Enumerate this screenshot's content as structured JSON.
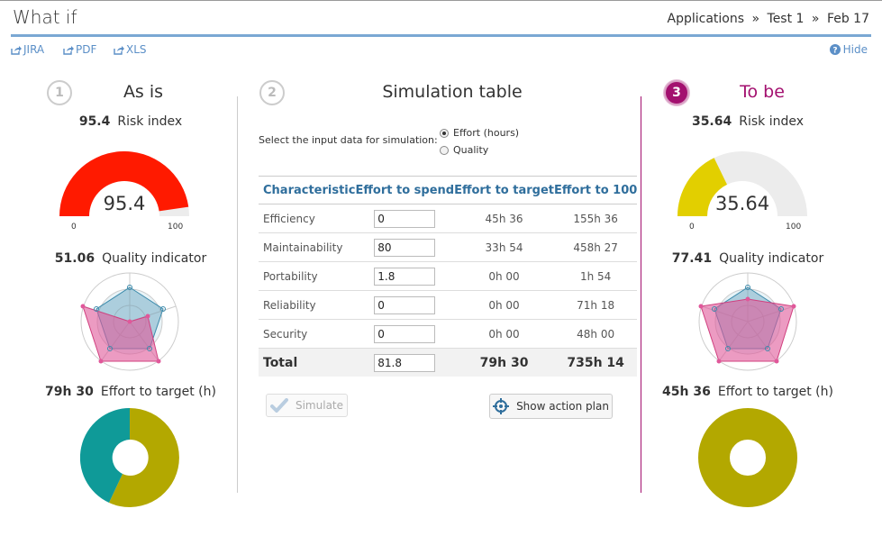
{
  "header": {
    "title": "What if",
    "breadcrumb": [
      "Applications",
      "Test 1",
      "Feb 17"
    ],
    "separator": "»"
  },
  "exports": [
    {
      "label": "JIRA",
      "icon": "share-icon"
    },
    {
      "label": "PDF",
      "icon": "share-icon"
    },
    {
      "label": "XLS",
      "icon": "share-icon"
    }
  ],
  "hide_label": "Hide",
  "as_is": {
    "step": "1",
    "title": "As is",
    "risk_value": "95.4",
    "risk_label": "Risk index",
    "gauge_value": "95.4",
    "gauge_fraction": 0.954,
    "gauge_min": "0",
    "gauge_max": "100",
    "gauge_color": "#ff1a00",
    "quality_value": "51.06",
    "quality_label": "Quality indicator",
    "effort_value": "79h 30",
    "effort_label": "Effort to target (h)"
  },
  "simulation": {
    "step": "2",
    "title": "Simulation table",
    "input_label": "Select the input data for simulation:",
    "radio_options": [
      {
        "label": "Effort (hours)",
        "selected": true
      },
      {
        "label": "Quality",
        "selected": false
      }
    ],
    "columns": [
      "Characteristic",
      "Effort to spend",
      "Effort to target",
      "Effort to 100"
    ],
    "rows": [
      {
        "name": "Efficiency",
        "spend": "0",
        "target": "45h 36",
        "to100": "155h 36"
      },
      {
        "name": "Maintainability",
        "spend": "80",
        "target": "33h 54",
        "to100": "458h 27"
      },
      {
        "name": "Portability",
        "spend": "1.8",
        "target": "0h 00",
        "to100": "1h 54"
      },
      {
        "name": "Reliability",
        "spend": "0",
        "target": "0h 00",
        "to100": "71h 18"
      },
      {
        "name": "Security",
        "spend": "0",
        "target": "0h 00",
        "to100": "48h 00"
      }
    ],
    "total": {
      "name": "Total",
      "spend": "81.8",
      "target": "79h 30",
      "to100": "735h 14"
    },
    "simulate_label": "Simulate",
    "action_plan_label": "Show action plan"
  },
  "to_be": {
    "step": "3",
    "title": "To be",
    "risk_value": "35.64",
    "risk_label": "Risk index",
    "gauge_value": "35.64",
    "gauge_fraction": 0.3564,
    "gauge_min": "0",
    "gauge_max": "100",
    "gauge_color": "#e2cf00",
    "quality_value": "77.41",
    "quality_label": "Quality indicator",
    "effort_value": "45h 36",
    "effort_label": "Effort to target (h)"
  },
  "colors": {
    "accent_blue": "#7aa8d3",
    "link_blue": "#5b8fc7",
    "header_blue": "#2f6e9c",
    "magenta": "#a3106f",
    "radar_pink": "#e0589a",
    "radar_blue": "#3c8aab",
    "donut_olive": "#b3a800",
    "donut_teal": "#0f9a98",
    "gauge_track": "#ececec"
  }
}
